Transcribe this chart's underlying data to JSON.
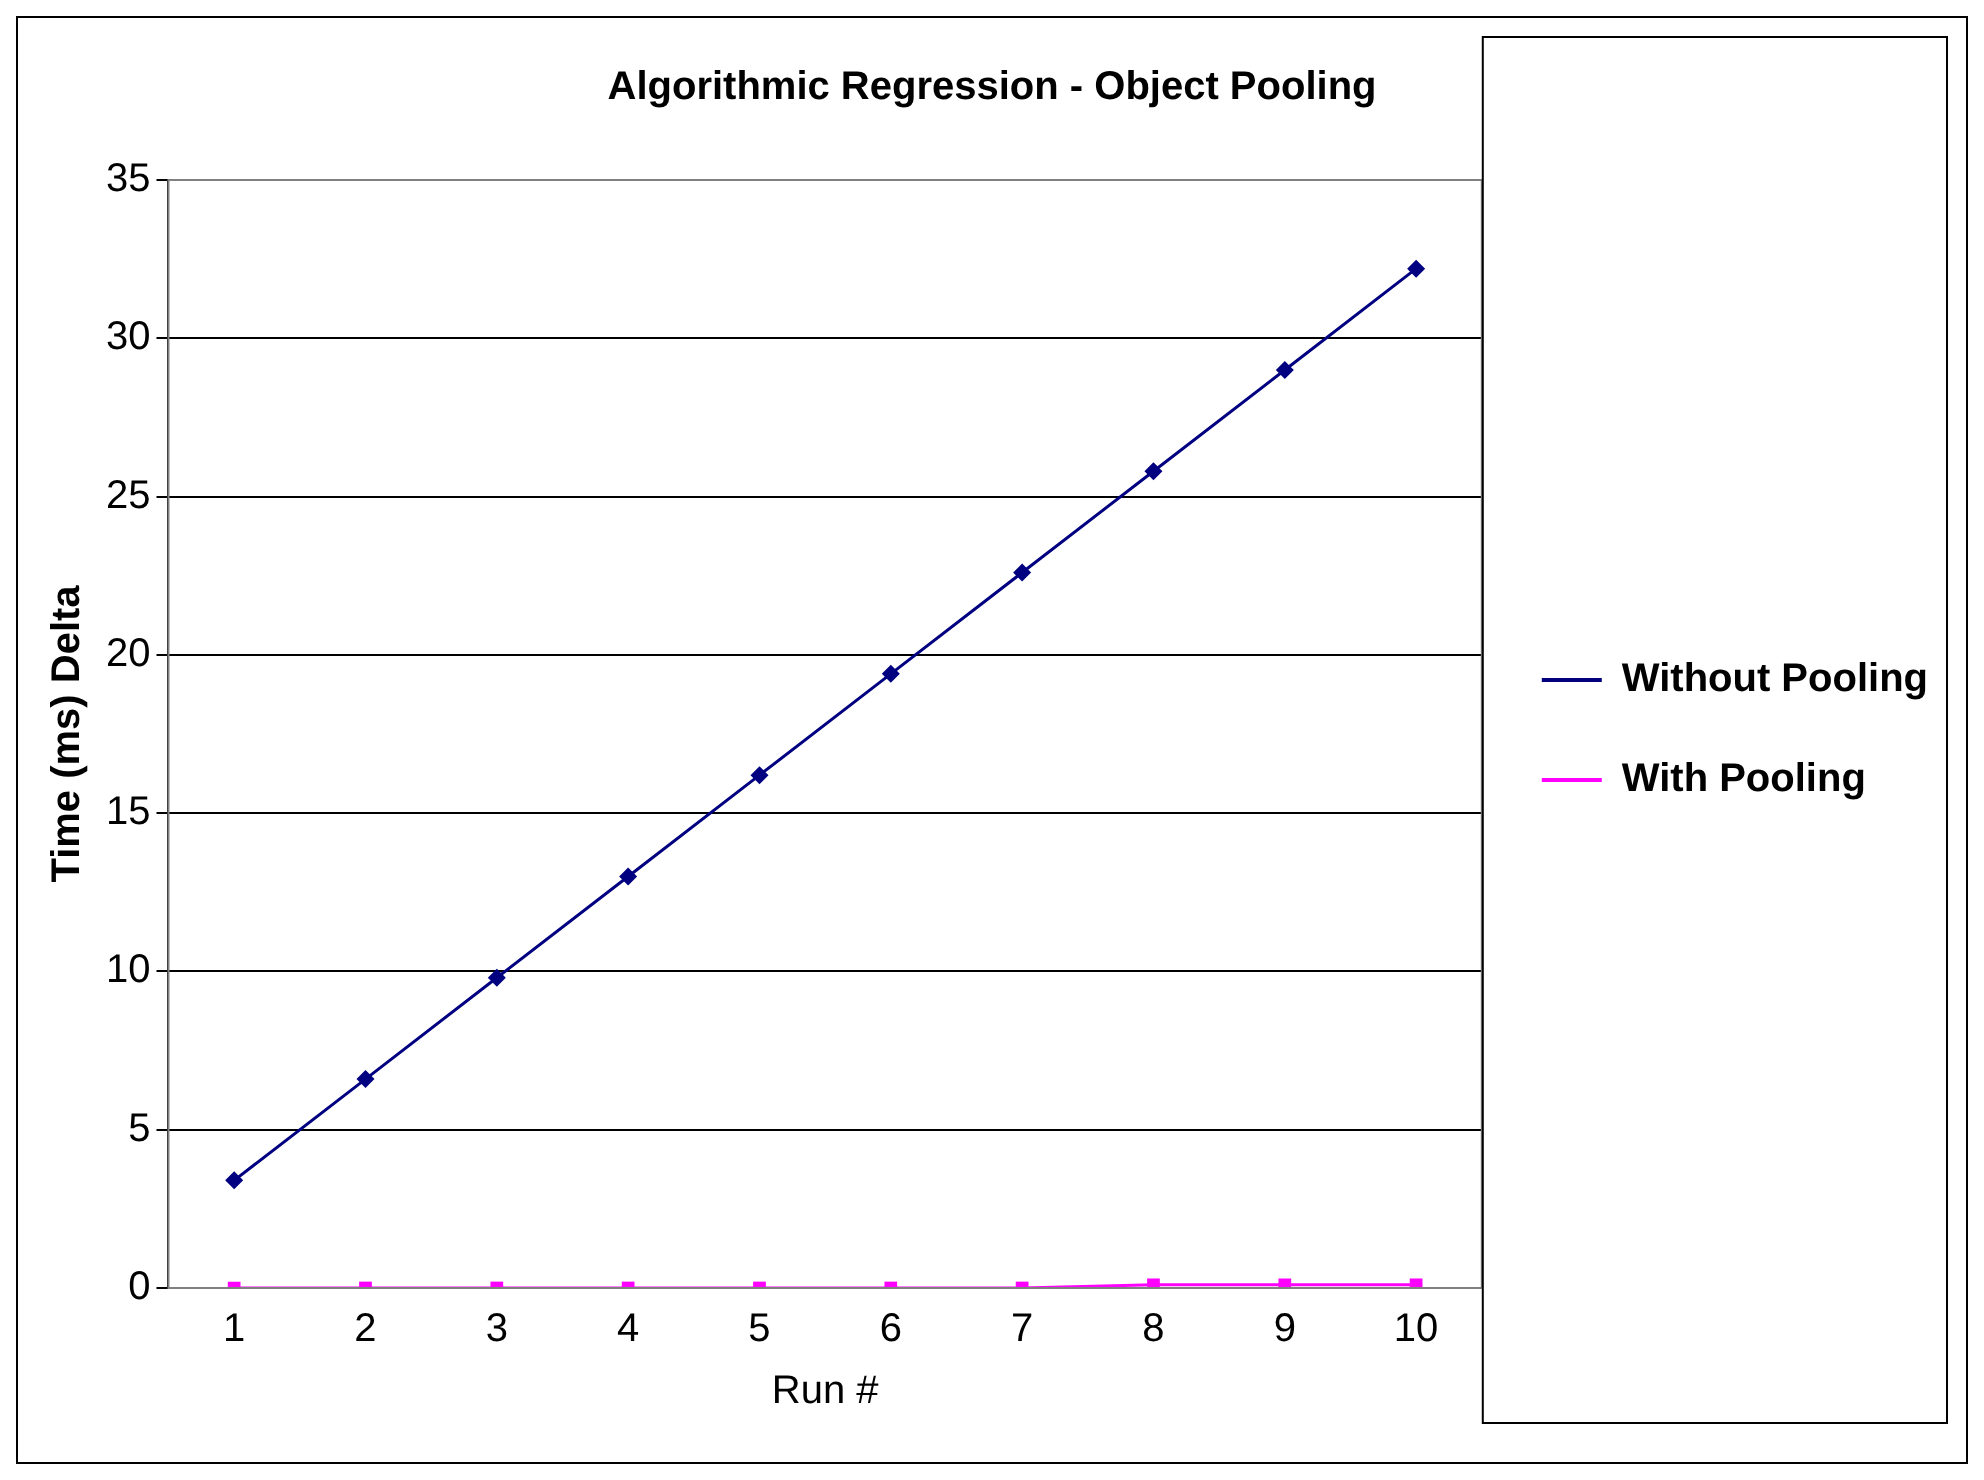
{
  "chart_data": {
    "type": "line",
    "title": "Algorithmic Regression - Object Pooling",
    "xlabel": "Run #",
    "ylabel": "Time (ms) Delta",
    "categories": [
      "1",
      "2",
      "3",
      "4",
      "5",
      "6",
      "7",
      "8",
      "9",
      "10"
    ],
    "series": [
      {
        "name": "Without Pooling",
        "color": "#000080",
        "marker": "diamond",
        "values": [
          3.4,
          6.6,
          9.8,
          13,
          16.2,
          19.4,
          22.6,
          25.8,
          29,
          32.2
        ]
      },
      {
        "name": "With Pooling",
        "color": "#ff00ff",
        "marker": "square",
        "values": [
          0,
          0,
          0,
          0,
          0,
          0,
          0,
          0.1,
          0.1,
          0.1
        ]
      }
    ],
    "ylim": [
      0,
      35
    ],
    "yticks": [
      0,
      5,
      10,
      15,
      20,
      25,
      30,
      35
    ],
    "grid": "y",
    "legend": "right",
    "line_style": "solid"
  }
}
